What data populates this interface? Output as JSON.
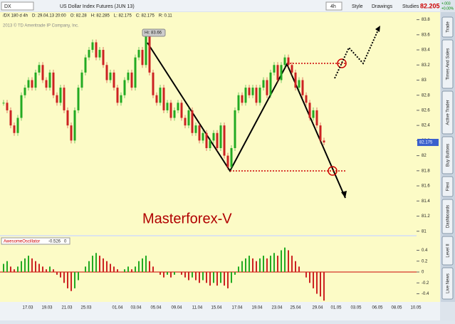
{
  "toolbar": {
    "symbol": "DX",
    "instrument": "US Dollar Index Futures (JUN 13)",
    "period": "4h",
    "style": "Style",
    "drawings": "Drawings",
    "studies": "Studies",
    "last": 82.205,
    "change": "+.003",
    "change_pct": "+0.00%"
  },
  "info": [
    "/DX 180 d 4h",
    "D: 29.04.13 20:00",
    "O: 82.28",
    "H: 82.285",
    "L: 82.175",
    "C: 82.175",
    "R: 0.11"
  ],
  "watermark": "2013 © TD Ameritrade IP Company, Inc.",
  "price_chart": {
    "ylim": [
      80.95,
      83.9
    ],
    "yticks": [
      83.8,
      83.6,
      83.4,
      83.2,
      83,
      82.8,
      82.6,
      82.4,
      82.2,
      82,
      81.8,
      81.6,
      81.4,
      81.2,
      81
    ],
    "closes": [
      82.7,
      82.6,
      82.4,
      82.3,
      82.5,
      82.8,
      82.9,
      83.0,
      82.9,
      83.1,
      83.2,
      83.0,
      82.9,
      83.1,
      82.8,
      82.7,
      82.9,
      82.6,
      82.4,
      82.2,
      82.6,
      82.9,
      83.1,
      83.3,
      83.4,
      83.5,
      83.3,
      83.4,
      83.2,
      83.0,
      83.1,
      82.9,
      82.7,
      82.8,
      83.0,
      83.1,
      82.9,
      83.3,
      83.4,
      83.2,
      83.6,
      83.1,
      82.8,
      82.7,
      82.9,
      82.6,
      82.7,
      82.5,
      82.6,
      82.7,
      82.5,
      82.4,
      82.6,
      82.3,
      82.4,
      82.2,
      82.3,
      82.1,
      82.2,
      82.3,
      82.1,
      82.4,
      82.0,
      81.85,
      82.1,
      82.6,
      82.8,
      82.7,
      82.9,
      82.8,
      82.9,
      82.7,
      82.9,
      83.0,
      82.8,
      83.1,
      83.2,
      83.0,
      83.2,
      83.3,
      83.2,
      83.1,
      82.9,
      83.0,
      82.8,
      82.7,
      82.5,
      82.6,
      82.4,
      82.2,
      82.175
    ],
    "current_price": 82.175,
    "hi_label": "Hi: 83.66",
    "annotation": "Masterforex-V"
  },
  "oscillator": {
    "name": "AwesomeOscillator",
    "value": -0.526,
    "zero": 0,
    "ylim": [
      -0.55,
      0.55
    ],
    "yticks": [
      0.4,
      0.2,
      0,
      -0.2,
      -0.4
    ],
    "values": [
      0.15,
      0.2,
      0.1,
      0.05,
      0.1,
      0.2,
      0.25,
      0.3,
      0.25,
      0.2,
      0.15,
      0.1,
      0.05,
      0.1,
      0.05,
      -0.05,
      -0.1,
      -0.2,
      -0.3,
      -0.35,
      -0.3,
      -0.15,
      0,
      0.1,
      0.2,
      0.3,
      0.35,
      0.3,
      0.25,
      0.2,
      0.15,
      0.1,
      0.05,
      0,
      0.05,
      0.1,
      0.05,
      0.1,
      0.2,
      0.25,
      0.3,
      0.2,
      0.1,
      0,
      -0.05,
      -0.1,
      -0.05,
      -0.1,
      -0.05,
      0,
      -0.05,
      -0.1,
      -0.15,
      -0.1,
      -0.15,
      -0.2,
      -0.15,
      -0.2,
      -0.25,
      -0.2,
      -0.25,
      -0.2,
      -0.25,
      -0.3,
      -0.2,
      -0.05,
      0.1,
      0.2,
      0.25,
      0.3,
      0.25,
      0.2,
      0.25,
      0.3,
      0.25,
      0.3,
      0.35,
      0.3,
      0.4,
      0.45,
      0.4,
      0.3,
      0.2,
      0.1,
      0,
      -0.1,
      -0.2,
      -0.3,
      -0.4,
      -0.45,
      -0.526
    ]
  },
  "dates": [
    "17.03",
    "19.03",
    "21.03",
    "25.03",
    "01.04",
    "03.04",
    "05.04",
    "09.04",
    "11.04",
    "15.04",
    "17.04",
    "19.04",
    "23.04",
    "25.04",
    "29.04",
    "01.05",
    "03.05",
    "06.05",
    "08.05",
    "10.05"
  ],
  "sidebar": [
    "Trade",
    "Times And Sales",
    "Active Trader",
    "Buy Buttons",
    "Flexi",
    "Dashboards",
    "Level II",
    "Live News"
  ]
}
